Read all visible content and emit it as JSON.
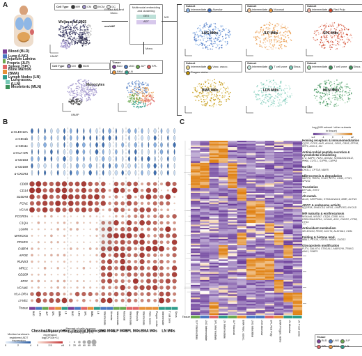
{
  "panelA": {
    "letter": "A",
    "tissues": [
      {
        "label": "Blood (BLD)",
        "color": "#7b3f98"
      },
      {
        "label": "Lung (LNG)",
        "color": "#4a78c2"
      },
      {
        "label": "Jejunum Lamina Propria (JLP)",
        "color": "#6aa84f"
      },
      {
        "label": "Spleen (SPL)",
        "color": "#e06666"
      },
      {
        "label": "Bone Marrow (BMA)",
        "color": "#e69138"
      },
      {
        "label": "Lymph Nodes (LN)",
        "color": "#2e9c8a"
      },
      {
        "label": "Lung-assoc. (LLN)",
        "color": "#76c8b5"
      },
      {
        "label": "Mesenteric (MLN)",
        "color": "#3c8f58"
      }
    ],
    "cell_type_title": "Cell Type",
    "cell_types": [
      "MΦ",
      "CM",
      "NCM",
      "DC"
    ],
    "wells_title": "Weller et al. 2025",
    "extract_label": "Extract MΦ and Mono.",
    "method_label": "Multimodal embedding and clustering",
    "gex": "GEX",
    "adt": "ADT",
    "mmvae": "mmVAE",
    "mono_label": "Mono.",
    "mphi_label": "MΦ",
    "monocytes_label": "Monocytes",
    "cell_type_legend2": [
      "CM",
      "NCM"
    ],
    "tissue_legend_title": "Tissue",
    "tissue_legend": [
      "BLD",
      "LNG",
      "JLP",
      "SPL",
      "BMA",
      "LN"
    ],
    "umap": "UMAP",
    "subsets": [
      {
        "title": "Subset",
        "items": [
          "Intermediate",
          "Alveolar"
        ],
        "name": "LNG MΦs",
        "color": "#3d6bbf"
      },
      {
        "title": "Subset",
        "items": [
          "Intermediate",
          "Mucosal"
        ],
        "name": "JLP MΦs",
        "color": "#e69138"
      },
      {
        "title": "Subset",
        "items": [
          "Intermediate",
          "Red Pulp"
        ],
        "name": "SPL MΦs",
        "color": "#cc4125"
      },
      {
        "title": "Subset",
        "items": [
          "Intermediate",
          "Vasc. assoc.",
          "Progen. niche"
        ],
        "name": "BMA MΦs",
        "color": "#bf9000"
      },
      {
        "title": "Subset",
        "items": [
          "Intermediate",
          "T cell zone",
          "Sinus"
        ],
        "name": "LLN MΦs",
        "color": "#76c8b5"
      },
      {
        "title": "Subset",
        "items": [
          "Intermediate",
          "T cell zone",
          "Sinus"
        ],
        "name": "MLN MΦs",
        "color": "#3c8f58"
      }
    ]
  },
  "panelB": {
    "letter": "B",
    "adt_genes": [
      "α-CLEC12A",
      "α-CD11b",
      "α-CD11c",
      "α-HLA-DR",
      "α-CD163",
      "α-CD169",
      "α-CXCR3"
    ],
    "rna_genes": [
      "CD68",
      "CD14",
      "S100A8",
      "FCN1",
      "VCAN",
      "FCGR3A",
      "C1QA",
      "LGMN",
      "MARCKS",
      "PPARG",
      "FABP4",
      "APOE",
      "RUNX3",
      "MRC1",
      "CD209",
      "SPIC",
      "VCAM1",
      "HLA-DRA",
      "LYVE1"
    ],
    "tissue_row": "Tissue",
    "col_labels": [
      "BLD",
      "LNG",
      "JLP",
      "SPL",
      "BMA",
      "LN",
      "BLD",
      "LNG",
      "SPL",
      "BMA",
      "LN",
      "Intermediate",
      "Alveolar",
      "Intermediate",
      "Mucosal",
      "Intermediate",
      "Red pulp",
      "Intermediate",
      "Vasc. assoc.",
      "Progen. niche",
      "Intermediate",
      "T cell zone",
      "Sinus"
    ],
    "groups": [
      "Classical Monocytes",
      "Non-classical Monocytes",
      "LNG MΦs",
      "JLP MΦs",
      "SPL MΦs",
      "BMA MΦs",
      "LN MΦs"
    ],
    "legend_adt_title": "Median landmark-registered ADT expression",
    "legend_expr_title": "Mean gene expression log(CP10k+1)",
    "legend_pct_title": "Percent of cells in group expressing gene (%)",
    "legend_adt_ticks": [
      "0",
      "2",
      "4"
    ],
    "legend_expr_ticks": [
      "0",
      "2.5",
      "≥5"
    ],
    "legend_pct_ticks": [
      "0",
      "20",
      "40",
      "60",
      "80",
      "100"
    ]
  },
  "panelC": {
    "letter": "C",
    "scale_title": "Log₂(MΦ subset / other subsets in tissue)",
    "scale_ticks": [
      "≤-2",
      "-1",
      "0",
      "1",
      "≥2"
    ],
    "modules": [
      {
        "title": "Homing receptors & immunomodulation",
        "genes": "CCR2, CCR5, AHR, ANXA1, CBX3, CBX8, ZFP36, KLF6, ASXL1, ID2"
      },
      {
        "title": "Antimicrobial peptide secretion & cytoskeletal remodeling",
        "genes": "LYZ, AMPH, PDK1, ANXA2, S100A8/A10/A12, FLNA, COTL1, S1PR4, CAPN3"
      },
      {
        "title": "M2-like",
        "genes": "CHI3L1, CPT1B, MAFB"
      },
      {
        "title": "Efferocytosis & degradation",
        "genes": "MERTK, SIRPA, FCAR, SPP1, CD93, CTSH, SPNS1"
      },
      {
        "title": "Translation",
        "genes": "EEF1A1, EEF2"
      },
      {
        "title": "Alt-metab.",
        "genes": "ALAS, SERPINA1, ST6GALNAC4, MME, ACTN4"
      },
      {
        "title": "ADCC & endosome activity",
        "genes": "FCGR3A, DNAJC18, MEN1, LAMTOR2, MYO1D"
      },
      {
        "title": "MΦ maturity & erythrocytosis",
        "genes": "MS4A4A, MS4A7, C1QB, CD68, HLA-DRB1/DMA/DPA1, VCAM1, ADI1, CNDP2, CTSB, CTSC"
      },
      {
        "title": "Antioxidant metabolism",
        "genes": "SELENOM, PEDR, ACOT4, ALDH6A1, CD5L"
      },
      {
        "title": "Folding & histone mod.",
        "genes": "PPIL3, PEX19, USP30, MBD6, SUDS3"
      },
      {
        "title": "Glycoprotein modification",
        "genes": "FUT4, GALNT4, ST6GAL1, MARCH9, TRAK2, AAK1, FNBP1"
      }
    ],
    "columns": [
      "JLP Intermediate",
      "LNG Intermediate",
      "SPL Intermediate",
      "LN Intermediate",
      "JLP Mucosal",
      "BMA Vasc. assoc.",
      "LNG Interstitial",
      "LNG Alveolar",
      "SPL Red Pulp",
      "BMA Progen. niche",
      "LN Alveolar",
      "LN T cell zone"
    ],
    "tissue_row": "Tissue",
    "tissue_legend_title": "Tissue",
    "tissue_legend": [
      "BLD",
      "LNG",
      "JLP",
      "SPL",
      "BMA",
      "LN"
    ]
  },
  "colors": {
    "low": "#6a3d9a",
    "mid": "#ffffff",
    "high": "#e08214",
    "expr_high": "#c4393b",
    "expr_low": "#fbe3d6"
  }
}
